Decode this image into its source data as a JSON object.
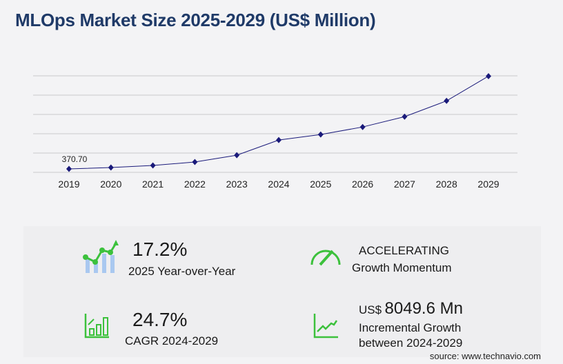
{
  "title": "MLOps Market Size 2025-2029 (US$ Million)",
  "chart_data": {
    "type": "line",
    "title": "MLOps Market Size 2025-2029 (US$ Million)",
    "categories": [
      "2019",
      "2020",
      "2021",
      "2022",
      "2023",
      "2024",
      "2025",
      "2026",
      "2027",
      "2028",
      "2029"
    ],
    "values": [
      370.7,
      546,
      805,
      1238,
      2104,
      4010,
      4702,
      5655,
      6954,
      8946,
      12060
    ],
    "data_labels": {
      "2019": "370.70"
    },
    "ylim": [
      0,
      12100
    ],
    "grid": true,
    "line_color": "#1a1a7a"
  },
  "kpis": {
    "yoy_value": "17.2%",
    "yoy_label": "2025 Year-over-Year",
    "momentum_value": "ACCELERATING",
    "momentum_label": "Growth Momentum",
    "cagr_value": "24.7%",
    "cagr_label": "CAGR 2024-2029",
    "inc_prefix": "US$",
    "inc_value": "8049.6 Mn",
    "inc_label1": "Incremental Growth",
    "inc_label2": "between 2024-2029"
  },
  "colors": {
    "accent_green": "#3cc13c",
    "bar_blue": "#a9c8f0",
    "title": "#1f3a68"
  },
  "source": "source: www.technavio.com"
}
